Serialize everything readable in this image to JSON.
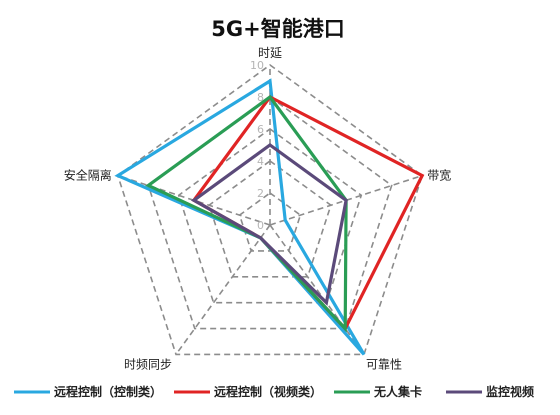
{
  "chart_data": {
    "type": "radar",
    "title": "5G+智能港口",
    "axes": [
      "时延",
      "带宽",
      "可靠性",
      "时频同步",
      "安全隔离"
    ],
    "ticks": [
      "0",
      "2",
      "4",
      "6",
      "8",
      "10"
    ],
    "range": [
      0,
      10
    ],
    "grid": true,
    "legend_position": "bottom",
    "series": [
      {
        "name": "远程控制（控制类）",
        "color": "#29a8e0",
        "values": [
          9,
          1,
          10,
          1,
          10
        ]
      },
      {
        "name": "远程控制（视频类）",
        "color": "#e02424",
        "values": [
          8,
          10,
          8,
          1,
          5
        ]
      },
      {
        "name": "无人集卡",
        "color": "#2a9d55",
        "values": [
          8,
          5,
          8,
          1,
          8
        ]
      },
      {
        "name": "监控视频",
        "color": "#5b4a7a",
        "values": [
          5,
          5,
          6,
          1,
          5
        ]
      }
    ]
  }
}
